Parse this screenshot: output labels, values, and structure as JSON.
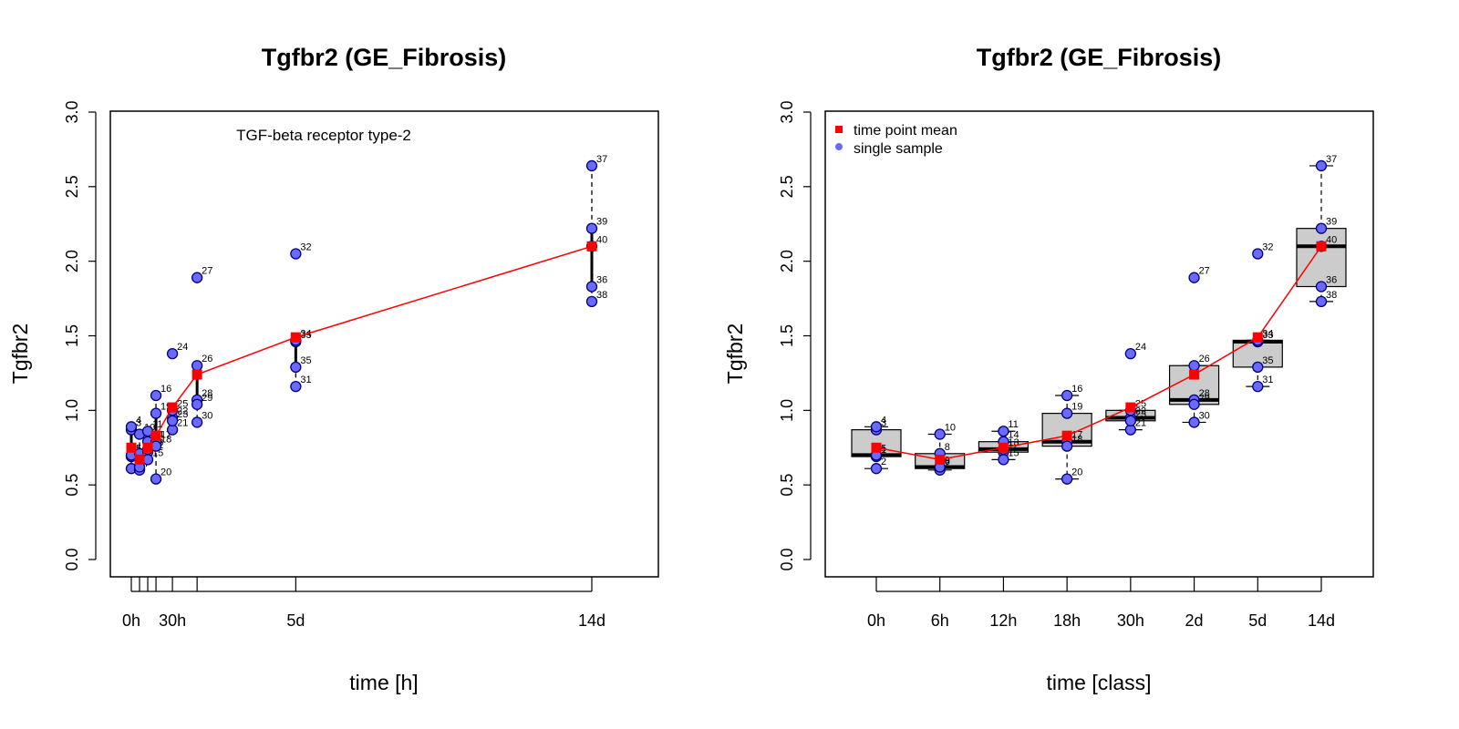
{
  "chart_data": [
    {
      "type": "scatter",
      "title": "Tgfbr2 (GE_Fibrosis)",
      "subtitle": "TGF-beta receptor type-2",
      "xlabel": "time [h]",
      "ylabel": "Tgfbr2",
      "ylim": [
        0,
        3
      ],
      "y_ticks": [
        "0.0",
        "0.5",
        "1.0",
        "1.5",
        "2.0",
        "2.5",
        "3.0"
      ],
      "x_ticks": [
        {
          "x": 0,
          "label": "0h"
        },
        {
          "x": 6,
          "label": ""
        },
        {
          "x": 12,
          "label": ""
        },
        {
          "x": 18,
          "label": ""
        },
        {
          "x": 30,
          "label": "30h"
        },
        {
          "x": 48,
          "label": ""
        },
        {
          "x": 120,
          "label": "5d"
        },
        {
          "x": 336,
          "label": "14d"
        }
      ],
      "series": [
        {
          "name": "time point mean",
          "x": [
            0,
            6,
            12,
            18,
            30,
            48,
            120,
            336
          ],
          "values": [
            0.75,
            0.67,
            0.75,
            0.83,
            1.02,
            1.24,
            1.49,
            2.1
          ]
        },
        {
          "name": "single sample",
          "points": [
            {
              "id": "1",
              "x": 0,
              "y": 0.69
            },
            {
              "id": "2",
              "x": 0,
              "y": 0.61
            },
            {
              "id": "3",
              "x": 0,
              "y": 0.87
            },
            {
              "id": "4",
              "x": 0,
              "y": 0.89
            },
            {
              "id": "5",
              "x": 0,
              "y": 0.7
            },
            {
              "id": "6",
              "x": 6,
              "y": 0.61
            },
            {
              "id": "7",
              "x": 6,
              "y": 0.6
            },
            {
              "id": "8",
              "x": 6,
              "y": 0.71
            },
            {
              "id": "9",
              "x": 6,
              "y": 0.62
            },
            {
              "id": "10",
              "x": 6,
              "y": 0.84
            },
            {
              "id": "11",
              "x": 12,
              "y": 0.86
            },
            {
              "id": "12",
              "x": 12,
              "y": 0.72
            },
            {
              "id": "13",
              "x": 12,
              "y": 0.74
            },
            {
              "id": "14",
              "x": 12,
              "y": 0.79
            },
            {
              "id": "15",
              "x": 12,
              "y": 0.67
            },
            {
              "id": "16",
              "x": 18,
              "y": 1.1
            },
            {
              "id": "17",
              "x": 18,
              "y": 0.79
            },
            {
              "id": "18",
              "x": 18,
              "y": 0.76
            },
            {
              "id": "19",
              "x": 18,
              "y": 0.98
            },
            {
              "id": "20",
              "x": 18,
              "y": 0.54
            },
            {
              "id": "21",
              "x": 30,
              "y": 0.87
            },
            {
              "id": "22",
              "x": 30,
              "y": 0.95
            },
            {
              "id": "23",
              "x": 30,
              "y": 0.93
            },
            {
              "id": "24",
              "x": 30,
              "y": 1.38
            },
            {
              "id": "25",
              "x": 30,
              "y": 1.0
            },
            {
              "id": "26",
              "x": 48,
              "y": 1.3
            },
            {
              "id": "27",
              "x": 48,
              "y": 1.89
            },
            {
              "id": "28",
              "x": 48,
              "y": 1.07
            },
            {
              "id": "29",
              "x": 48,
              "y": 1.04
            },
            {
              "id": "30",
              "x": 48,
              "y": 0.92
            },
            {
              "id": "31",
              "x": 120,
              "y": 1.16
            },
            {
              "id": "32",
              "x": 120,
              "y": 2.05
            },
            {
              "id": "33",
              "x": 120,
              "y": 1.46
            },
            {
              "id": "34",
              "x": 120,
              "y": 1.47
            },
            {
              "id": "35",
              "x": 120,
              "y": 1.29
            },
            {
              "id": "36",
              "x": 336,
              "y": 1.83
            },
            {
              "id": "37",
              "x": 336,
              "y": 2.64
            },
            {
              "id": "38",
              "x": 336,
              "y": 1.73
            },
            {
              "id": "39",
              "x": 336,
              "y": 2.22
            },
            {
              "id": "40",
              "x": 336,
              "y": 2.1
            }
          ]
        }
      ],
      "colors": {
        "mean": "#ff0000",
        "sample": "#6a6aff",
        "sample_edge": "#00007a"
      }
    },
    {
      "type": "box",
      "title": "Tgfbr2 (GE_Fibrosis)",
      "xlabel": "time [class]",
      "ylabel": "Tgfbr2",
      "ylim": [
        0,
        3
      ],
      "y_ticks": [
        "0.0",
        "0.5",
        "1.0",
        "1.5",
        "2.0",
        "2.5",
        "3.0"
      ],
      "categories": [
        "0h",
        "6h",
        "12h",
        "18h",
        "30h",
        "2d",
        "5d",
        "14d"
      ],
      "legend": {
        "position": "top-left",
        "entries": [
          "time point mean",
          "single sample"
        ]
      },
      "series": [
        {
          "name": "time point mean",
          "values": [
            0.75,
            0.67,
            0.75,
            0.83,
            1.02,
            1.24,
            1.49,
            2.1
          ]
        }
      ],
      "boxes": [
        {
          "q1": 0.69,
          "median": 0.7,
          "q3": 0.87,
          "lo": 0.61,
          "hi": 0.89
        },
        {
          "q1": 0.61,
          "median": 0.62,
          "q3": 0.71,
          "lo": 0.6,
          "hi": 0.84
        },
        {
          "q1": 0.72,
          "median": 0.74,
          "q3": 0.79,
          "lo": 0.67,
          "hi": 0.86
        },
        {
          "q1": 0.76,
          "median": 0.79,
          "q3": 0.98,
          "lo": 0.54,
          "hi": 1.1
        },
        {
          "q1": 0.93,
          "median": 0.95,
          "q3": 1.0,
          "lo": 0.87,
          "hi": 1.0
        },
        {
          "q1": 1.04,
          "median": 1.07,
          "q3": 1.3,
          "lo": 0.92,
          "hi": 1.3
        },
        {
          "q1": 1.29,
          "median": 1.46,
          "q3": 1.47,
          "lo": 1.16,
          "hi": 1.47
        },
        {
          "q1": 1.83,
          "median": 2.1,
          "q3": 2.22,
          "lo": 1.73,
          "hi": 2.64
        }
      ],
      "colors": {
        "box": "#cccccc",
        "mean": "#ff0000",
        "sample": "#6a6aff"
      }
    }
  ]
}
